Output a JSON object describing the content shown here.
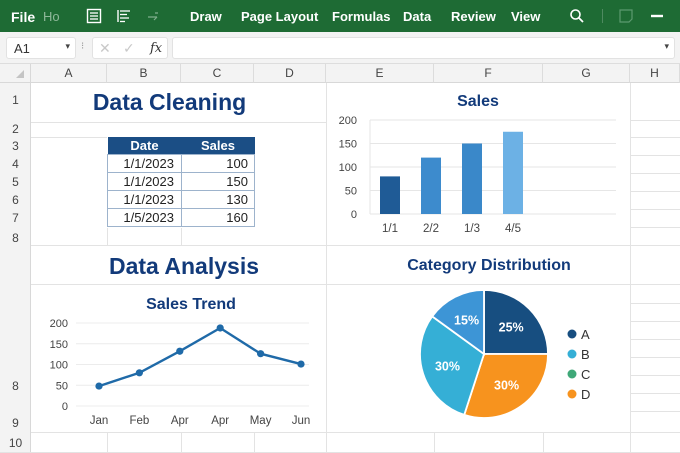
{
  "ribbon": {
    "file": "File",
    "home_partial": "Ho",
    "tabs": [
      "Draw",
      "Page Layout",
      "Formulas",
      "Data",
      "Review",
      "View"
    ],
    "icons": [
      "list-view-icon",
      "align-left-icon",
      "undo-icon",
      "search-icon",
      "comment-icon",
      "minimize-icon"
    ],
    "bg_color": "#1e6b34"
  },
  "formula_bar": {
    "name_box": "A1",
    "cancel_icon": "✕",
    "confirm_icon": "✓",
    "fx_label": "fx",
    "value": ""
  },
  "grid": {
    "columns": [
      "A",
      "B",
      "C",
      "D",
      "E",
      "F",
      "G",
      "H"
    ],
    "rows": [
      "1",
      "2",
      "3",
      "4",
      "5",
      "6",
      "7",
      "8",
      "8",
      "9",
      "10"
    ]
  },
  "sections": {
    "cleaning_title": "Data Cleaning",
    "analysis_title": "Data Analysis"
  },
  "table": {
    "headers": [
      "Date",
      "Sales"
    ],
    "rows": [
      [
        "1/1/2023",
        "100"
      ],
      [
        "1/1/2023",
        "150"
      ],
      [
        "1/1/2023",
        "130"
      ],
      [
        "1/5/2023",
        "160"
      ]
    ]
  },
  "chart_data": [
    {
      "type": "bar",
      "title": "Sales",
      "categories": [
        "1/1",
        "2/2",
        "1/3",
        "4/5"
      ],
      "values": [
        80,
        120,
        150,
        175
      ],
      "colors": [
        "#1f5b96",
        "#3d8bcd",
        "#3a88c9",
        "#6cb1e5"
      ],
      "yticks": [
        "0",
        "50",
        "100",
        "150",
        "200"
      ],
      "ylim": [
        0,
        200
      ],
      "grid": true
    },
    {
      "type": "line",
      "title": "Sales Trend",
      "categories": [
        "Jan",
        "Feb",
        "Apr",
        "Apr",
        "May",
        "Jun"
      ],
      "values": [
        48,
        80,
        132,
        188,
        126,
        101
      ],
      "color": "#1f6aa8",
      "yticks": [
        "0",
        "50",
        "100",
        "150",
        "200"
      ],
      "ylim": [
        0,
        200
      ],
      "grid": true
    },
    {
      "type": "pie",
      "title": "Category Distribution",
      "slices": [
        {
          "label": "A",
          "value": 25,
          "display": "25%",
          "color": "#174e80"
        },
        {
          "label": "D",
          "value": 30,
          "display": "30%",
          "color": "#f7931e"
        },
        {
          "label": "B",
          "value": 30,
          "display": "30%",
          "color": "#35afd6"
        },
        {
          "label": "B",
          "value": 15,
          "display": "15%",
          "color": "#3d95d6"
        }
      ],
      "legend": [
        {
          "label": "A",
          "color": "#174e80"
        },
        {
          "label": "B",
          "color": "#35afd6"
        },
        {
          "label": "C",
          "color": "#3fa878"
        },
        {
          "label": "D",
          "color": "#f7931e"
        }
      ],
      "legend_position": "right"
    }
  ]
}
